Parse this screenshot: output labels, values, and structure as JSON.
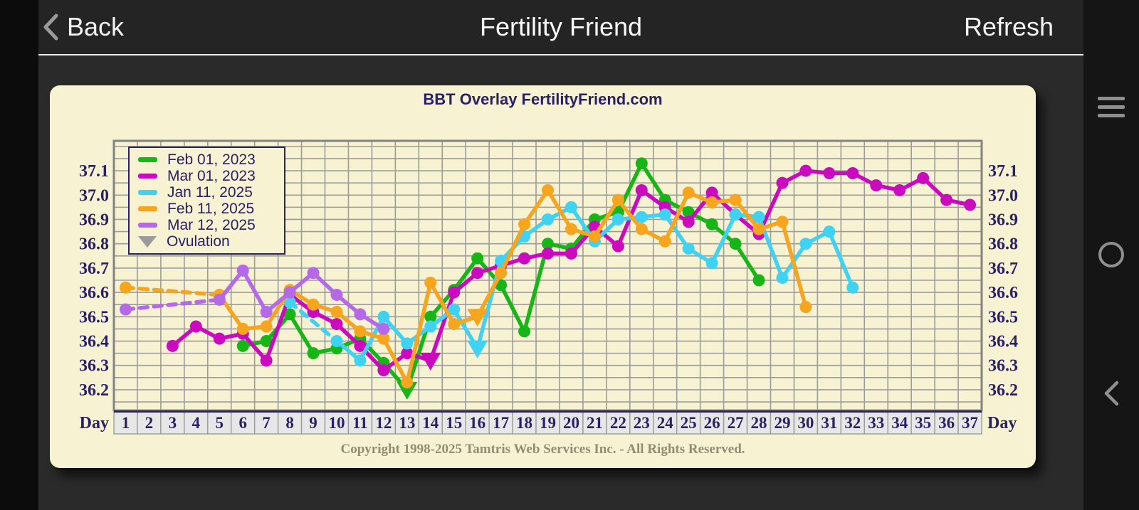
{
  "header": {
    "back": "Back",
    "title": "Fertility Friend",
    "refresh": "Refresh"
  },
  "panel": {
    "copyright": "Copyright 1998-2025 Tamtris Web Services Inc. - All Rights Reserved."
  },
  "nav_rail": {
    "icons": [
      "menu-icon",
      "home-circle-icon",
      "back-chevron-icon"
    ]
  },
  "colors": {
    "panel_bg": "#f6f2d2",
    "grid": "#9c9c9c",
    "frame": "#828282",
    "navy": "#2b2066",
    "day_cell_bg": "#e7e7e7",
    "day_cell_border": "#9c9c9c",
    "ovulation_gray": "#9b9b9b"
  },
  "chart_data": {
    "type": "line",
    "title": "BBT Overlay FertilityFriend.com",
    "xlabel": "Day",
    "x_range": [
      1,
      37
    ],
    "ylim": [
      36.115,
      37.223
    ],
    "y_ticks": [
      37.1,
      37.0,
      36.9,
      36.8,
      36.7,
      36.6,
      36.5,
      36.4,
      36.3,
      36.2
    ],
    "grid_step": 0.05,
    "legend_position": "top-left",
    "ovulation_legend": {
      "label": "Ovulation",
      "color": "#9b9b9b"
    },
    "series": [
      {
        "name": "Feb 01, 2023",
        "color": "#17b617",
        "ovulation_day": 13,
        "dashed_segments": [],
        "points": [
          [
            6,
            36.38
          ],
          [
            7,
            36.4
          ],
          [
            8,
            36.51
          ],
          [
            9,
            36.35
          ],
          [
            10,
            36.37
          ],
          [
            11,
            36.41
          ],
          [
            12,
            36.31
          ],
          [
            13,
            36.2
          ],
          [
            14,
            36.5
          ],
          [
            15,
            36.61
          ],
          [
            16,
            36.74
          ],
          [
            17,
            36.63
          ],
          [
            18,
            36.44
          ],
          [
            19,
            36.8
          ],
          [
            20,
            36.78
          ],
          [
            21,
            36.9
          ],
          [
            22,
            36.93
          ],
          [
            23,
            37.13
          ],
          [
            24,
            36.98
          ],
          [
            25,
            36.93
          ],
          [
            26,
            36.88
          ],
          [
            27,
            36.8
          ],
          [
            28,
            36.65
          ]
        ]
      },
      {
        "name": "Mar 01, 2023",
        "color": "#cb0ac0",
        "ovulation_day": 14,
        "dashed_segments": [],
        "points": [
          [
            3,
            36.38
          ],
          [
            4,
            36.46
          ],
          [
            5,
            36.41
          ],
          [
            6,
            36.43
          ],
          [
            7,
            36.32
          ],
          [
            8,
            36.59
          ],
          [
            9,
            36.52
          ],
          [
            10,
            36.47
          ],
          [
            11,
            36.38
          ],
          [
            12,
            36.28
          ],
          [
            13,
            36.35
          ],
          [
            14,
            36.32
          ],
          [
            15,
            36.6
          ],
          [
            16,
            36.68
          ],
          [
            17,
            36.71
          ],
          [
            18,
            36.74
          ],
          [
            19,
            36.76
          ],
          [
            20,
            36.76
          ],
          [
            21,
            36.87
          ],
          [
            22,
            36.79
          ],
          [
            23,
            37.02
          ],
          [
            24,
            36.95
          ],
          [
            25,
            36.89
          ],
          [
            26,
            37.01
          ],
          [
            27,
            36.92
          ],
          [
            28,
            36.84
          ],
          [
            29,
            37.05
          ],
          [
            30,
            37.1
          ],
          [
            31,
            37.09
          ],
          [
            32,
            37.09
          ],
          [
            33,
            37.04
          ],
          [
            34,
            37.02
          ],
          [
            35,
            37.07
          ],
          [
            36,
            36.98
          ],
          [
            37,
            36.96
          ]
        ]
      },
      {
        "name": "Jan 11, 2025",
        "color": "#3fd2f2",
        "ovulation_day": 16,
        "dashed_segments": [
          [
            8,
            10
          ]
        ],
        "points": [
          [
            8,
            36.56
          ],
          [
            10,
            36.4
          ],
          [
            11,
            36.32
          ],
          [
            12,
            36.5
          ],
          [
            13,
            36.39
          ],
          [
            14,
            36.46
          ],
          [
            15,
            36.53
          ],
          [
            16,
            36.37
          ],
          [
            17,
            36.73
          ],
          [
            18,
            36.83
          ],
          [
            19,
            36.9
          ],
          [
            20,
            36.95
          ],
          [
            21,
            36.81
          ],
          [
            22,
            36.9
          ],
          [
            23,
            36.91
          ],
          [
            24,
            36.92
          ],
          [
            25,
            36.78
          ],
          [
            26,
            36.72
          ],
          [
            27,
            36.92
          ],
          [
            28,
            36.91
          ],
          [
            29,
            36.66
          ],
          [
            30,
            36.8
          ],
          [
            31,
            36.85
          ],
          [
            32,
            36.62
          ]
        ]
      },
      {
        "name": "Feb 11, 2025",
        "color": "#f7a41f",
        "ovulation_day": 16,
        "dashed_segments": [
          [
            1,
            5
          ]
        ],
        "points": [
          [
            1,
            36.62
          ],
          [
            5,
            36.59
          ],
          [
            6,
            36.45
          ],
          [
            7,
            36.46
          ],
          [
            8,
            36.61
          ],
          [
            9,
            36.55
          ],
          [
            10,
            36.52
          ],
          [
            11,
            36.44
          ],
          [
            12,
            36.41
          ],
          [
            13,
            36.23
          ],
          [
            14,
            36.64
          ],
          [
            15,
            36.47
          ],
          [
            16,
            36.5
          ],
          [
            17,
            36.68
          ],
          [
            18,
            36.88
          ],
          [
            19,
            37.02
          ],
          [
            20,
            36.86
          ],
          [
            21,
            36.83
          ],
          [
            22,
            36.98
          ],
          [
            23,
            36.86
          ],
          [
            24,
            36.81
          ],
          [
            25,
            37.01
          ],
          [
            26,
            36.97
          ],
          [
            27,
            36.98
          ],
          [
            28,
            36.86
          ],
          [
            29,
            36.89
          ],
          [
            30,
            36.54
          ]
        ]
      },
      {
        "name": "Mar 12, 2025",
        "color": "#b568e8",
        "ovulation_day": null,
        "dashed_segments": [
          [
            1,
            5
          ]
        ],
        "points": [
          [
            1,
            36.53
          ],
          [
            5,
            36.57
          ],
          [
            6,
            36.69
          ],
          [
            7,
            36.52
          ],
          [
            8,
            36.6
          ],
          [
            9,
            36.68
          ],
          [
            10,
            36.59
          ],
          [
            11,
            36.51
          ],
          [
            12,
            36.45
          ]
        ]
      }
    ]
  }
}
